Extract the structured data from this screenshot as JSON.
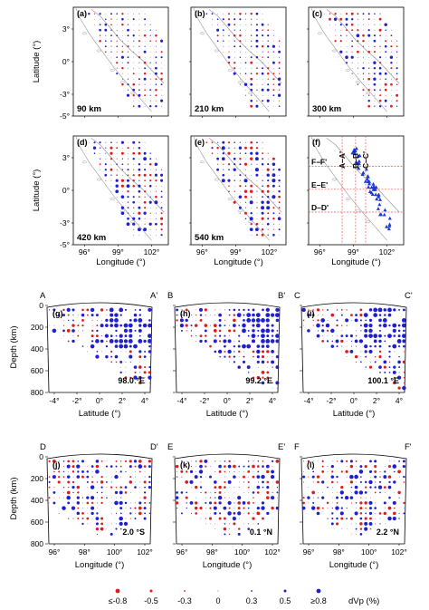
{
  "colors": {
    "positive": "#1f1fd0",
    "negative": "#e01b1b",
    "coast": "#9a9a9a",
    "frame": "#000000",
    "stations": "#1a3ad8",
    "profile_line": "#e85a5a"
  },
  "map_axes": {
    "lat_ticks": [
      "3°",
      "0°",
      "-3°",
      "-5°"
    ],
    "lat_label": "Latitude (°)",
    "lon_ticks": [
      "96°",
      "99°",
      "102°"
    ],
    "lon_label": "Longitude (°)"
  },
  "map_panels": [
    {
      "letter": "(a)",
      "depth": "90 km"
    },
    {
      "letter": "(b)",
      "depth": "210 km"
    },
    {
      "letter": "(c)",
      "depth": "300 km"
    },
    {
      "letter": "(d)",
      "depth": "420 km"
    },
    {
      "letter": "(e)",
      "depth": "540 km"
    },
    {
      "letter": "(f)",
      "depth": ""
    }
  ],
  "profile_lines": {
    "vertical": [
      "A–A'",
      "B–B'",
      "C–C'"
    ],
    "horizontal": [
      "F–F'",
      "E–E'",
      "D–D'"
    ]
  },
  "section_axes": {
    "depth_ticks": [
      "0",
      "200",
      "400",
      "600",
      "800"
    ],
    "depth_label": "Depth (km)",
    "lat_ticks": [
      "-4°",
      "-2°",
      "0°",
      "2°",
      "4°"
    ],
    "lat_label": "Latitude (°)",
    "lon_ticks": [
      "96°",
      "98°",
      "100°",
      "102°"
    ],
    "lon_label": "Longitude (°)"
  },
  "section_panels": [
    {
      "letter": "(g)",
      "start": "A",
      "end": "A'",
      "location": "98.0 °E"
    },
    {
      "letter": "(h)",
      "start": "B",
      "end": "B'",
      "location": "99.2 °E"
    },
    {
      "letter": "(i)",
      "start": "C",
      "end": "C'",
      "location": "100.1 °E"
    },
    {
      "letter": "(j)",
      "start": "D",
      "end": "D'",
      "location": "2.0 °S"
    },
    {
      "letter": "(k)",
      "start": "E",
      "end": "E'",
      "location": "0.1 °N"
    },
    {
      "letter": "(l)",
      "start": "F",
      "end": "F'",
      "location": "2.2 °N"
    }
  ],
  "legend": {
    "title": "dVp (%)",
    "labels": [
      "≤-0.8",
      "-0.5",
      "-0.3",
      "0",
      "0.3",
      "0.5",
      "≥0.8"
    ],
    "values": [
      -0.8,
      -0.5,
      -0.3,
      0,
      0.3,
      0.5,
      0.8
    ]
  }
}
